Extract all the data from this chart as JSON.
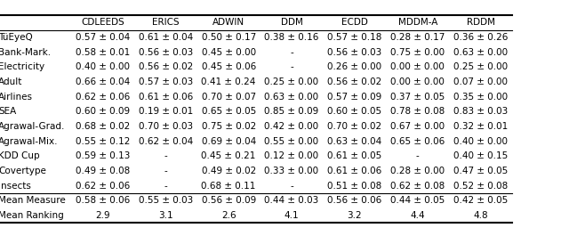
{
  "columns": [
    "CDLEEDS",
    "ERICS",
    "ADWIN",
    "DDM",
    "ECDD",
    "MDDM-A",
    "RDDM"
  ],
  "rows": [
    "TüEyeQ",
    "Bank-Mark.",
    "Electricity",
    "Adult",
    "Airlines",
    "SEA",
    "Agrawal-Grad.",
    "Agrawal-Mix.",
    "KDD Cup",
    "Covertype",
    "Insects"
  ],
  "data": [
    [
      "0.57 ± 0.04",
      "0.61 ± 0.04",
      "0.50 ± 0.17",
      "0.38 ± 0.16",
      "0.57 ± 0.18",
      "0.28 ± 0.17",
      "0.36 ± 0.26"
    ],
    [
      "0.58 ± 0.01",
      "0.56 ± 0.03",
      "0.45 ± 0.00",
      "-",
      "0.56 ± 0.03",
      "0.75 ± 0.00",
      "0.63 ± 0.00"
    ],
    [
      "0.40 ± 0.00",
      "0.56 ± 0.02",
      "0.45 ± 0.06",
      "-",
      "0.26 ± 0.00",
      "0.00 ± 0.00",
      "0.25 ± 0.00"
    ],
    [
      "0.66 ± 0.04",
      "0.57 ± 0.03",
      "0.41 ± 0.24",
      "0.25 ± 0.00",
      "0.56 ± 0.02",
      "0.00 ± 0.00",
      "0.07 ± 0.00"
    ],
    [
      "0.62 ± 0.06",
      "0.61 ± 0.06",
      "0.70 ± 0.07",
      "0.63 ± 0.00",
      "0.57 ± 0.09",
      "0.37 ± 0.05",
      "0.35 ± 0.00"
    ],
    [
      "0.60 ± 0.09",
      "0.19 ± 0.01",
      "0.65 ± 0.05",
      "0.85 ± 0.09",
      "0.60 ± 0.05",
      "0.78 ± 0.08",
      "0.83 ± 0.03"
    ],
    [
      "0.68 ± 0.02",
      "0.70 ± 0.03",
      "0.75 ± 0.02",
      "0.42 ± 0.00",
      "0.70 ± 0.02",
      "0.67 ± 0.00",
      "0.32 ± 0.01"
    ],
    [
      "0.55 ± 0.12",
      "0.62 ± 0.04",
      "0.69 ± 0.04",
      "0.55 ± 0.00",
      "0.63 ± 0.04",
      "0.65 ± 0.06",
      "0.40 ± 0.00"
    ],
    [
      "0.59 ± 0.13",
      "-",
      "0.45 ± 0.21",
      "0.12 ± 0.00",
      "0.61 ± 0.05",
      "-",
      "0.40 ± 0.15"
    ],
    [
      "0.49 ± 0.08",
      "-",
      "0.49 ± 0.02",
      "0.33 ± 0.00",
      "0.61 ± 0.06",
      "0.28 ± 0.00",
      "0.47 ± 0.05"
    ],
    [
      "0.62 ± 0.06",
      "-",
      "0.68 ± 0.11",
      "-",
      "0.51 ± 0.08",
      "0.62 ± 0.08",
      "0.52 ± 0.08"
    ]
  ],
  "mean_measure": [
    "0.58 ± 0.06",
    "0.55 ± 0.03",
    "0.56 ± 0.09",
    "0.44 ± 0.03",
    "0.56 ± 0.06",
    "0.44 ± 0.05",
    "0.42 ± 0.05"
  ],
  "mean_ranking": [
    "2.9",
    "3.1",
    "2.6",
    "4.1",
    "3.2",
    "4.4",
    "4.8"
  ],
  "bg_color": "#ffffff",
  "text_color": "#000000",
  "font_size": 7.5
}
